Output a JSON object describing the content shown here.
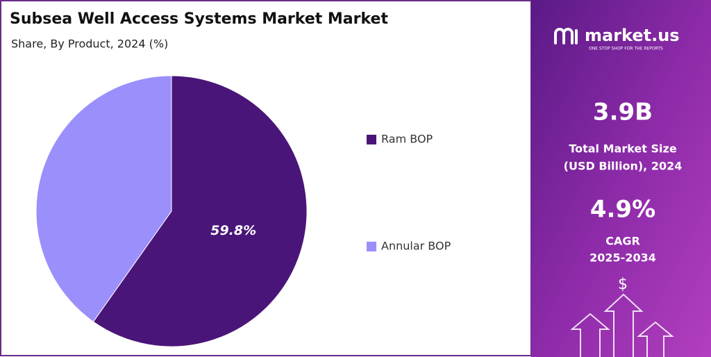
{
  "chart_data": {
    "type": "pie",
    "title": "Subsea Well Access Systems Market Market",
    "subtitle": "Share, By Product, 2024 (%)",
    "categories": [
      "Ram BOP",
      "Annular BOP"
    ],
    "values": [
      59.8,
      40.2
    ],
    "value_labels": [
      "59.8%",
      null
    ],
    "colors": [
      "#4a1578",
      "#9a8ffb"
    ]
  },
  "panel": {
    "brand": "market.us",
    "tagline": "ONE STOP SHOP FOR THE REPORTS",
    "market_size": "3.9B",
    "market_size_label": [
      "Total Market Size",
      "(USD Billion), 2024"
    ],
    "cagr": "4.9%",
    "cagr_label": [
      "CAGR",
      "2025-2034"
    ],
    "currency": "$"
  }
}
